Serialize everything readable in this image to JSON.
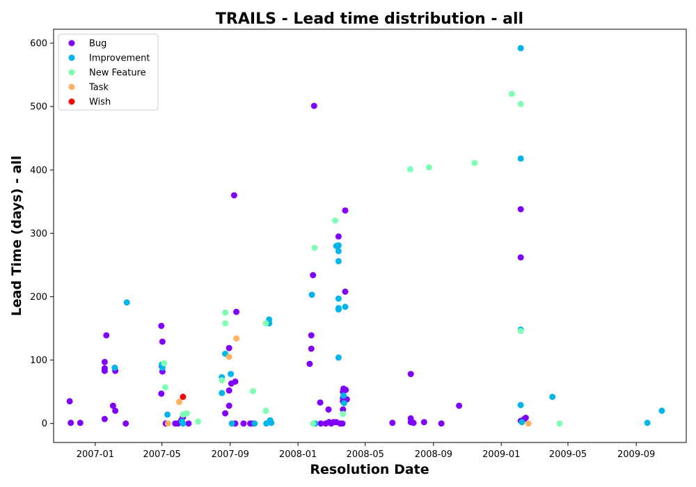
{
  "chart_data": {
    "type": "scatter",
    "title": "TRAILS - Lead time distribution - all",
    "xlabel": "Resolution Date",
    "ylabel": "Lead Time (days) - all",
    "x_type": "date",
    "xlim": [
      "2006-10-18",
      "2009-11-30"
    ],
    "ylim": [
      -30,
      622
    ],
    "x_ticks": [
      "2007-01-01",
      "2007-05-01",
      "2007-09-01",
      "2008-01-01",
      "2008-05-01",
      "2008-09-01",
      "2009-01-01",
      "2009-05-01",
      "2009-09-01"
    ],
    "x_tick_labels": [
      "2007-01",
      "2007-05",
      "2007-09",
      "2008-01",
      "2008-05",
      "2008-09",
      "2009-01",
      "2009-05",
      "2009-09"
    ],
    "y_ticks": [
      0,
      100,
      200,
      300,
      400,
      500,
      600
    ],
    "grid": false,
    "legend_position": "top-left",
    "series": [
      {
        "name": "Bug",
        "color": "#8000ff",
        "points": [
          {
            "x": "2006-11-16",
            "y": 35
          },
          {
            "x": "2006-11-18",
            "y": 1
          },
          {
            "x": "2006-12-05",
            "y": 1
          },
          {
            "x": "2007-01-18",
            "y": 97
          },
          {
            "x": "2007-01-18",
            "y": 87
          },
          {
            "x": "2007-01-18",
            "y": 83
          },
          {
            "x": "2007-01-18",
            "y": 7
          },
          {
            "x": "2007-01-21",
            "y": 139
          },
          {
            "x": "2007-02-02",
            "y": 28
          },
          {
            "x": "2007-02-06",
            "y": 20
          },
          {
            "x": "2007-02-06",
            "y": 83
          },
          {
            "x": "2007-02-25",
            "y": 0
          },
          {
            "x": "2007-04-30",
            "y": 154
          },
          {
            "x": "2007-05-02",
            "y": 129
          },
          {
            "x": "2007-05-01",
            "y": 90
          },
          {
            "x": "2007-05-02",
            "y": 82
          },
          {
            "x": "2007-04-30",
            "y": 47
          },
          {
            "x": "2007-05-08",
            "y": 0
          },
          {
            "x": "2007-05-25",
            "y": 0
          },
          {
            "x": "2007-05-30",
            "y": 0
          },
          {
            "x": "2007-06-05",
            "y": 5
          },
          {
            "x": "2007-06-08",
            "y": 10
          },
          {
            "x": "2007-06-18",
            "y": 0
          },
          {
            "x": "2007-08-23",
            "y": 16
          },
          {
            "x": "2007-08-30",
            "y": 119
          },
          {
            "x": "2007-08-30",
            "y": 52
          },
          {
            "x": "2007-08-30",
            "y": 28
          },
          {
            "x": "2007-09-03",
            "y": 63
          },
          {
            "x": "2007-09-08",
            "y": 360
          },
          {
            "x": "2007-09-10",
            "y": 66
          },
          {
            "x": "2007-09-10",
            "y": 0
          },
          {
            "x": "2007-09-12",
            "y": 176
          },
          {
            "x": "2007-09-25",
            "y": 0
          },
          {
            "x": "2007-10-07",
            "y": 0
          },
          {
            "x": "2007-10-12",
            "y": 0
          },
          {
            "x": "2008-01-22",
            "y": 94
          },
          {
            "x": "2008-01-25",
            "y": 139
          },
          {
            "x": "2008-01-25",
            "y": 118
          },
          {
            "x": "2008-01-28",
            "y": 234
          },
          {
            "x": "2008-01-30",
            "y": 501
          },
          {
            "x": "2008-02-10",
            "y": 33
          },
          {
            "x": "2008-02-11",
            "y": 0
          },
          {
            "x": "2008-02-20",
            "y": 0
          },
          {
            "x": "2008-02-25",
            "y": 22
          },
          {
            "x": "2008-02-26",
            "y": 2
          },
          {
            "x": "2008-03-01",
            "y": 0
          },
          {
            "x": "2008-03-05",
            "y": 2
          },
          {
            "x": "2008-03-10",
            "y": 2
          },
          {
            "x": "2008-03-14",
            "y": 295
          },
          {
            "x": "2008-03-17",
            "y": 0
          },
          {
            "x": "2008-03-21",
            "y": 0
          },
          {
            "x": "2008-03-22",
            "y": 50
          },
          {
            "x": "2008-03-22",
            "y": 40
          },
          {
            "x": "2008-03-22",
            "y": 35
          },
          {
            "x": "2008-03-22",
            "y": 22
          },
          {
            "x": "2008-03-23",
            "y": 55
          },
          {
            "x": "2008-03-26",
            "y": 336
          },
          {
            "x": "2008-03-26",
            "y": 208
          },
          {
            "x": "2008-03-27",
            "y": 53
          },
          {
            "x": "2008-03-29",
            "y": 38
          },
          {
            "x": "2008-06-19",
            "y": 1
          },
          {
            "x": "2008-07-22",
            "y": 78
          },
          {
            "x": "2008-07-22",
            "y": 8
          },
          {
            "x": "2008-07-22",
            "y": 2
          },
          {
            "x": "2008-07-27",
            "y": 1
          },
          {
            "x": "2008-08-15",
            "y": 2
          },
          {
            "x": "2008-09-15",
            "y": 0
          },
          {
            "x": "2008-10-17",
            "y": 28
          },
          {
            "x": "2009-02-05",
            "y": 338
          },
          {
            "x": "2009-02-05",
            "y": 262
          },
          {
            "x": "2009-02-05",
            "y": 4
          },
          {
            "x": "2009-02-11",
            "y": 7
          },
          {
            "x": "2009-02-14",
            "y": 9
          }
        ]
      },
      {
        "name": "Improvement",
        "color": "#00b5eb",
        "points": [
          {
            "x": "2007-02-05",
            "y": 88
          },
          {
            "x": "2007-02-27",
            "y": 191
          },
          {
            "x": "2007-05-01",
            "y": 93
          },
          {
            "x": "2007-05-02",
            "y": 88
          },
          {
            "x": "2007-05-11",
            "y": 14
          },
          {
            "x": "2007-06-06",
            "y": 3
          },
          {
            "x": "2007-06-08",
            "y": 0
          },
          {
            "x": "2007-08-17",
            "y": 73
          },
          {
            "x": "2007-08-17",
            "y": 48
          },
          {
            "x": "2007-08-23",
            "y": 110
          },
          {
            "x": "2007-09-02",
            "y": 78
          },
          {
            "x": "2007-09-04",
            "y": 0
          },
          {
            "x": "2007-10-15",
            "y": 0
          },
          {
            "x": "2007-11-05",
            "y": 0
          },
          {
            "x": "2007-11-10",
            "y": 164
          },
          {
            "x": "2007-11-10",
            "y": 158
          },
          {
            "x": "2007-11-12",
            "y": 5
          },
          {
            "x": "2007-11-14",
            "y": 1
          },
          {
            "x": "2008-01-26",
            "y": 203
          },
          {
            "x": "2008-02-01",
            "y": 0
          },
          {
            "x": "2008-03-10",
            "y": 280
          },
          {
            "x": "2008-03-14",
            "y": 281
          },
          {
            "x": "2008-03-14",
            "y": 272
          },
          {
            "x": "2008-03-14",
            "y": 256
          },
          {
            "x": "2008-03-14",
            "y": 197
          },
          {
            "x": "2008-03-14",
            "y": 182
          },
          {
            "x": "2008-03-14",
            "y": 180
          },
          {
            "x": "2008-03-14",
            "y": 104
          },
          {
            "x": "2008-03-23",
            "y": 44
          },
          {
            "x": "2008-03-24",
            "y": 32
          },
          {
            "x": "2008-03-26",
            "y": 184
          },
          {
            "x": "2009-02-05",
            "y": 592
          },
          {
            "x": "2009-02-05",
            "y": 418
          },
          {
            "x": "2009-02-05",
            "y": 148
          },
          {
            "x": "2009-02-05",
            "y": 29
          },
          {
            "x": "2009-02-07",
            "y": 2
          },
          {
            "x": "2009-04-03",
            "y": 42
          },
          {
            "x": "2009-09-21",
            "y": 1
          },
          {
            "x": "2009-10-17",
            "y": 20
          }
        ]
      },
      {
        "name": "New Feature",
        "color": "#80ffb4",
        "points": [
          {
            "x": "2007-05-05",
            "y": 95
          },
          {
            "x": "2007-05-07",
            "y": 57
          },
          {
            "x": "2007-06-08",
            "y": 14
          },
          {
            "x": "2007-06-12",
            "y": 15
          },
          {
            "x": "2007-06-15",
            "y": 16
          },
          {
            "x": "2007-07-05",
            "y": 3
          },
          {
            "x": "2007-08-17",
            "y": 68
          },
          {
            "x": "2007-08-23",
            "y": 175
          },
          {
            "x": "2007-08-23",
            "y": 158
          },
          {
            "x": "2007-10-12",
            "y": 51
          },
          {
            "x": "2007-11-04",
            "y": 158
          },
          {
            "x": "2007-11-04",
            "y": 20
          },
          {
            "x": "2008-01-28",
            "y": 0
          },
          {
            "x": "2008-01-31",
            "y": 277
          },
          {
            "x": "2008-03-08",
            "y": 320
          },
          {
            "x": "2008-03-22",
            "y": 15
          },
          {
            "x": "2008-07-21",
            "y": 401
          },
          {
            "x": "2008-08-24",
            "y": 404
          },
          {
            "x": "2008-11-14",
            "y": 411
          },
          {
            "x": "2009-01-20",
            "y": 520
          },
          {
            "x": "2009-02-05",
            "y": 504
          },
          {
            "x": "2009-02-05",
            "y": 146
          },
          {
            "x": "2009-04-16",
            "y": 0
          }
        ]
      },
      {
        "name": "Task",
        "color": "#ffb360",
        "points": [
          {
            "x": "2007-05-12",
            "y": 0
          },
          {
            "x": "2007-06-01",
            "y": 34
          },
          {
            "x": "2007-08-30",
            "y": 105
          },
          {
            "x": "2007-09-12",
            "y": 134
          },
          {
            "x": "2009-02-19",
            "y": 0
          }
        ]
      },
      {
        "name": "Wish",
        "color": "#ff0000",
        "points": [
          {
            "x": "2007-06-08",
            "y": 42
          }
        ]
      }
    ]
  }
}
